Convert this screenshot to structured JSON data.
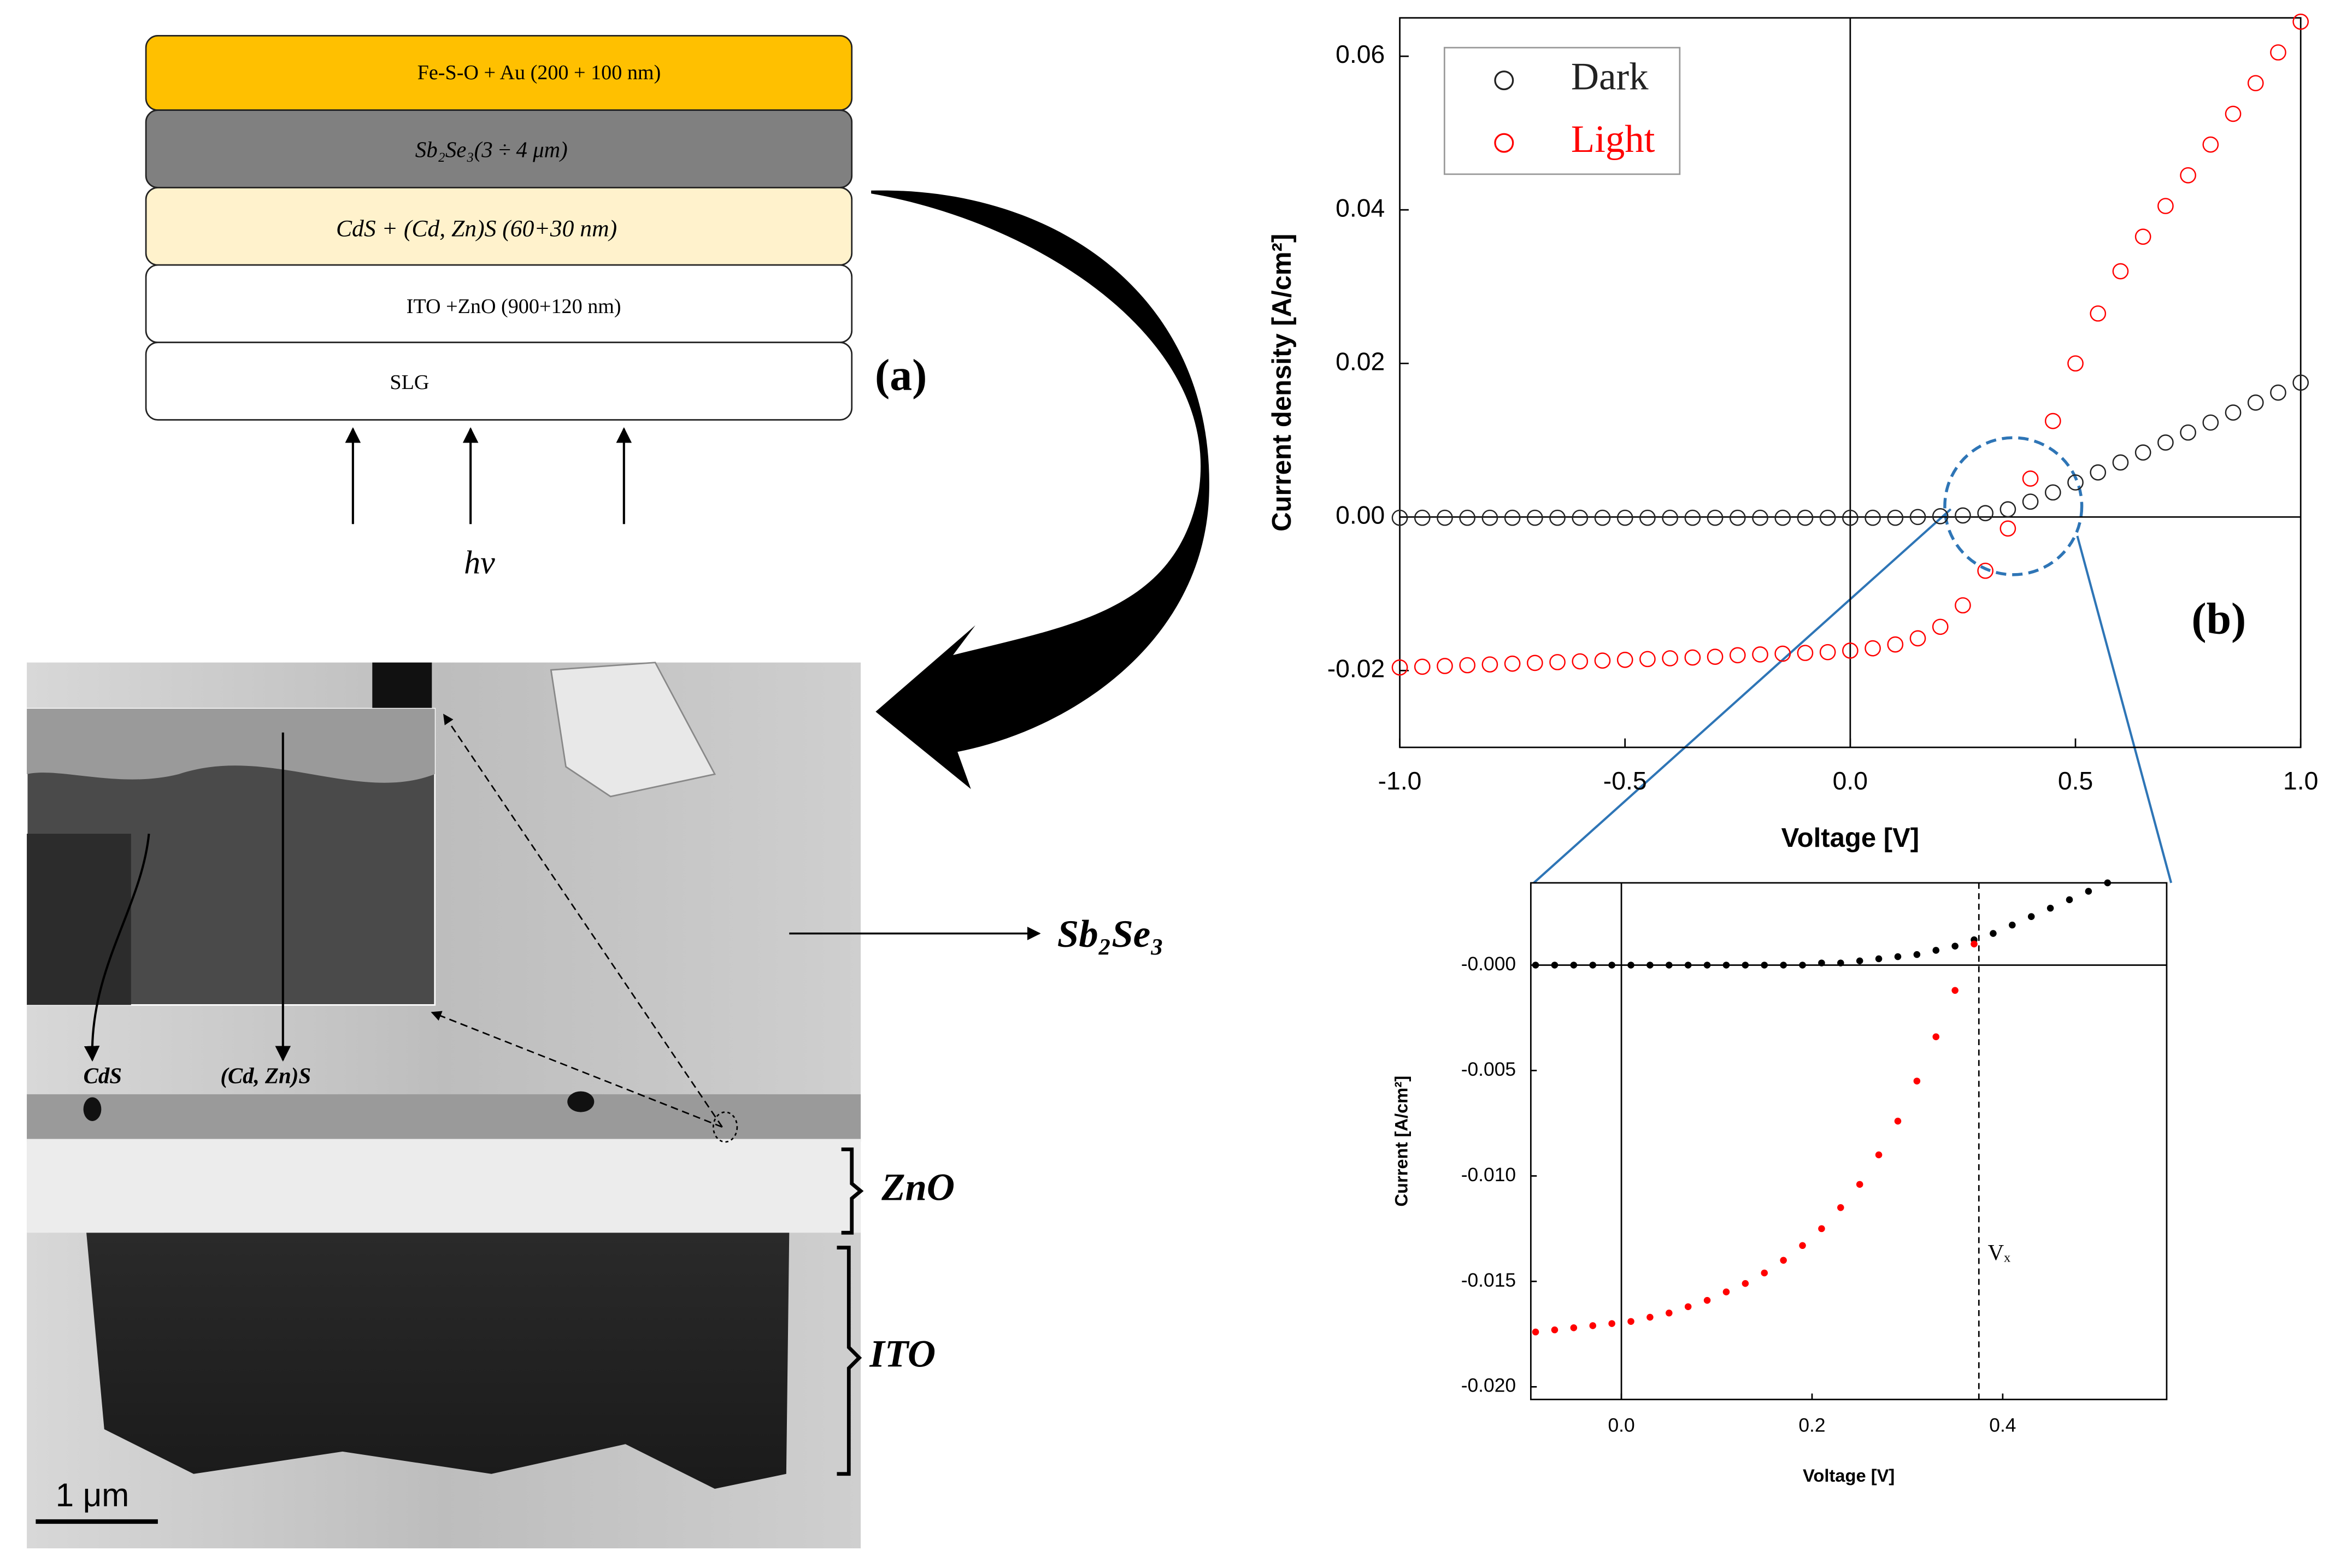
{
  "diagram": {
    "layers": [
      "Fe-S-O + Au (200 + 100 nm)",
      "Sb₂Se₃(3 ÷ 4 μm)",
      "CdS + (Cd, Zn)S (60+30 nm)",
      "ITO +ZnO (900+120 nm)",
      "SLG"
    ],
    "light_label": "hν",
    "panel_label": "(a)",
    "micrograph_labels": [
      "Sb₂Se₃",
      "ZnO",
      "ITO",
      "CdS",
      "(Cd, Zn)S"
    ],
    "scale_bar": "1 μm"
  },
  "chart_data": [
    {
      "type": "scatter",
      "xlabel": "Voltage [V]",
      "ylabel": "Current density [A/cm²]",
      "annotation": "(b)",
      "xlim": [
        -1,
        1
      ],
      "ylim": [
        -0.03,
        0.065
      ],
      "xticks": [
        {
          "value": -1,
          "label": "-1.0"
        },
        -0.5,
        {
          "value": 0,
          "label": "0.0"
        },
        0.5,
        {
          "value": 1,
          "label": "1.0"
        }
      ],
      "yticks": [
        -0.02,
        {
          "value": 0,
          "label": "0.00"
        },
        0.02,
        0.04,
        0.06
      ],
      "zero_lines": true,
      "marker": "open",
      "legend": "upper left",
      "series": [
        {
          "name": "Dark",
          "color": "#222222",
          "x": [
            -1,
            -0.95,
            -0.9,
            -0.85,
            -0.8,
            -0.75,
            -0.7,
            -0.65,
            -0.6,
            -0.55,
            -0.5,
            -0.45,
            -0.4,
            -0.35,
            -0.3,
            -0.25,
            -0.2,
            -0.15,
            -0.1,
            -0.05,
            0,
            0.05,
            0.1,
            0.15,
            0.2,
            0.25,
            0.3,
            0.35,
            0.4,
            0.45,
            0.5,
            0.55,
            0.6,
            0.65,
            0.7,
            0.75,
            0.8,
            0.85,
            0.9,
            0.95,
            1
          ],
          "values": [
            -0.0001,
            -0.0001,
            -0.0001,
            -0.0001,
            -0.0001,
            -0.0001,
            -0.0001,
            -0.0001,
            -0.0001,
            -0.0001,
            -0.0001,
            -0.0001,
            -0.0001,
            -0.0001,
            -0.0001,
            -0.0001,
            -0.0001,
            -0.0001,
            -0.0001,
            -0.0001,
            -0.0001,
            -0.0001,
            -0.0001,
            0,
            0.0001,
            0.0002,
            0.0005,
            0.001,
            0.002,
            0.0032,
            0.0045,
            0.0058,
            0.0071,
            0.0084,
            0.0097,
            0.011,
            0.0123,
            0.0136,
            0.0149,
            0.0162,
            0.0175
          ]
        },
        {
          "name": "Light",
          "color": "#ff0000",
          "x": [
            -1,
            -0.95,
            -0.9,
            -0.85,
            -0.8,
            -0.75,
            -0.7,
            -0.65,
            -0.6,
            -0.55,
            -0.5,
            -0.45,
            -0.4,
            -0.35,
            -0.3,
            -0.25,
            -0.2,
            -0.15,
            -0.1,
            -0.05,
            0,
            0.05,
            0.1,
            0.15,
            0.2,
            0.25,
            0.3,
            0.35,
            0.4,
            0.45,
            0.5,
            0.55,
            0.6,
            0.65,
            0.7,
            0.75,
            0.8,
            0.85,
            0.9,
            0.95,
            1
          ],
          "values": [
            -0.0196,
            -0.0195,
            -0.0194,
            -0.0193,
            -0.0192,
            -0.0191,
            -0.019,
            -0.0189,
            -0.0188,
            -0.0187,
            -0.0186,
            -0.0185,
            -0.0184,
            -0.0183,
            -0.0182,
            -0.018,
            -0.0179,
            -0.0178,
            -0.0177,
            -0.0176,
            -0.0174,
            -0.0171,
            -0.0166,
            -0.0158,
            -0.0143,
            -0.0115,
            -0.007,
            -0.0015,
            0.005,
            0.0125,
            0.02,
            0.0265,
            0.032,
            0.0365,
            0.0405,
            0.0445,
            0.0485,
            0.0525,
            0.0565,
            0.0605,
            0.0645
          ]
        }
      ]
    },
    {
      "type": "scatter",
      "xlabel": "Voltage [V]",
      "ylabel": "Current [A/cm²]",
      "xlim": [
        -0.095,
        0.572
      ],
      "ylim": [
        -0.0206,
        0.0039
      ],
      "xticks": [
        {
          "value": 0,
          "label": "0.0"
        },
        0.2,
        0.4
      ],
      "yticks": [
        {
          "value": -0.02,
          "label": "-0.020"
        },
        -0.015,
        {
          "value": -0.01,
          "label": "-0.010"
        },
        -0.005,
        {
          "value": 0,
          "label": "-0.000"
        }
      ],
      "zero_lines": true,
      "marker": "filled",
      "vline": {
        "x": 0.375,
        "label": "Vₓ"
      },
      "series": [
        {
          "color": "#000000",
          "x": [
            -0.09,
            -0.07,
            -0.05,
            -0.03,
            -0.01,
            0.01,
            0.03,
            0.05,
            0.07,
            0.09,
            0.11,
            0.13,
            0.15,
            0.17,
            0.19,
            0.21,
            0.23,
            0.25,
            0.27,
            0.29,
            0.31,
            0.33,
            0.35,
            0.37,
            0.39,
            0.41,
            0.43,
            0.45,
            0.47,
            0.49,
            0.51
          ],
          "values": [
            0,
            0,
            0,
            0,
            0,
            0,
            0,
            0,
            0,
            0,
            0,
            0,
            0,
            0,
            0,
            0.0001,
            0.0001,
            0.0002,
            0.0003,
            0.0004,
            0.0005,
            0.0007,
            0.0009,
            0.0012,
            0.0015,
            0.0019,
            0.0023,
            0.0027,
            0.0031,
            0.0035,
            0.0039
          ]
        },
        {
          "color": "#ff0000",
          "x": [
            -0.09,
            -0.07,
            -0.05,
            -0.03,
            -0.01,
            0.01,
            0.03,
            0.05,
            0.07,
            0.09,
            0.11,
            0.13,
            0.15,
            0.17,
            0.19,
            0.21,
            0.23,
            0.25,
            0.27,
            0.29,
            0.31,
            0.33,
            0.35,
            0.37
          ],
          "values": [
            -0.0174,
            -0.0173,
            -0.0172,
            -0.0171,
            -0.017,
            -0.0169,
            -0.0167,
            -0.0165,
            -0.0162,
            -0.0159,
            -0.0155,
            -0.0151,
            -0.0146,
            -0.014,
            -0.0133,
            -0.0125,
            -0.0115,
            -0.0104,
            -0.009,
            -0.0074,
            -0.0055,
            -0.0034,
            -0.0012,
            0.001
          ]
        }
      ]
    }
  ]
}
